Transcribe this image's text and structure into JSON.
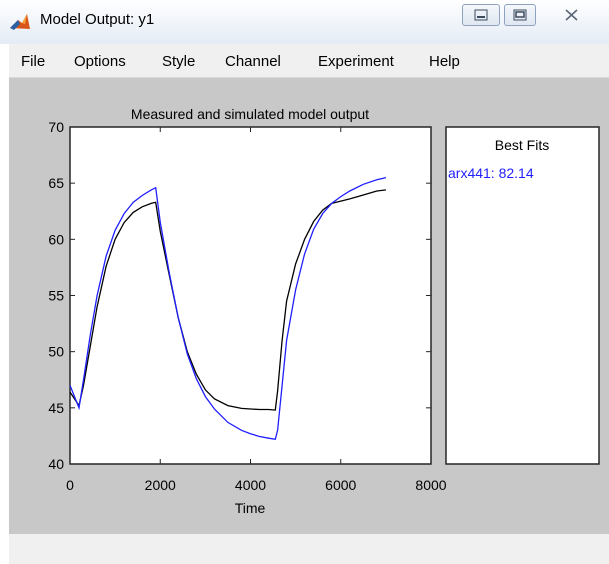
{
  "window": {
    "title": "Model Output: y1"
  },
  "menu": {
    "items": [
      "File",
      "Options",
      "Style",
      "Channel",
      "Experiment",
      "Help"
    ]
  },
  "icons": {
    "app": "matlab-icon",
    "minimize": "minimize-icon",
    "maximize": "maximize-icon",
    "close": "close-icon"
  },
  "colors": {
    "measured": "#000000",
    "simulated": "#1f1fff",
    "figure_bg": "#c8c8c8",
    "fit_text": "#1f1fff"
  },
  "fits_panel": {
    "title": "Best Fits",
    "entries": [
      {
        "label": "arx441: 82.14",
        "color": "#1f1fff"
      }
    ]
  },
  "chart_data": {
    "type": "line",
    "title": "Measured and simulated model output",
    "xlabel": "Time",
    "ylabel": "",
    "xlim": [
      0,
      8000
    ],
    "ylim": [
      40,
      70
    ],
    "xticks": [
      0,
      2000,
      4000,
      6000,
      8000
    ],
    "yticks": [
      40,
      45,
      50,
      55,
      60,
      65,
      70
    ],
    "grid": false,
    "series": [
      {
        "color": "#000000",
        "x": [
          0,
          100,
          200,
          300,
          450,
          600,
          800,
          1000,
          1200,
          1400,
          1600,
          1800,
          1900,
          2000,
          2200,
          2400,
          2600,
          2800,
          3000,
          3200,
          3500,
          3800,
          4000,
          4200,
          4400,
          4550,
          4600,
          4700,
          4800,
          5000,
          5200,
          5400,
          5600,
          5800,
          6000,
          6200,
          6500,
          6800,
          7000
        ],
        "y": [
          46.4,
          45.8,
          45.2,
          47.0,
          50.5,
          54.0,
          57.6,
          60.0,
          61.5,
          62.4,
          62.9,
          63.2,
          63.3,
          60.7,
          56.8,
          53.0,
          50.0,
          48.0,
          46.6,
          45.8,
          45.2,
          44.95,
          44.9,
          44.85,
          44.85,
          44.8,
          46.5,
          51.0,
          54.5,
          57.8,
          60.0,
          61.6,
          62.6,
          63.2,
          63.4,
          63.6,
          63.95,
          64.3,
          64.4
        ]
      },
      {
        "color": "#1f1fff",
        "x": [
          0,
          100,
          200,
          300,
          450,
          600,
          800,
          1000,
          1200,
          1400,
          1600,
          1800,
          1900,
          2000,
          2200,
          2400,
          2600,
          2800,
          3000,
          3200,
          3500,
          3800,
          4000,
          4200,
          4400,
          4550,
          4600,
          4700,
          4800,
          5000,
          5200,
          5400,
          5600,
          5800,
          6000,
          6200,
          6500,
          6800,
          7000
        ],
        "y": [
          47.0,
          46.0,
          45.0,
          47.5,
          51.5,
          55.0,
          58.5,
          60.8,
          62.3,
          63.3,
          63.9,
          64.4,
          64.6,
          61.5,
          57.0,
          53.0,
          49.8,
          47.6,
          46.0,
          44.9,
          43.7,
          43.0,
          42.7,
          42.45,
          42.3,
          42.2,
          43.0,
          47.0,
          51.0,
          55.5,
          58.7,
          60.9,
          62.3,
          63.2,
          63.8,
          64.3,
          64.9,
          65.3,
          65.5
        ]
      }
    ]
  }
}
